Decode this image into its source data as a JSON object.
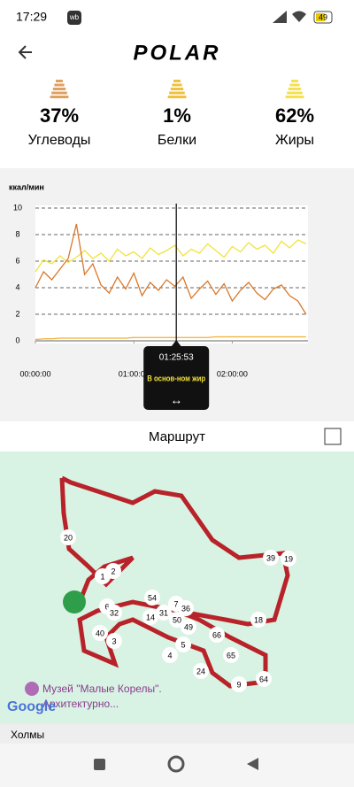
{
  "status_bar": {
    "time": "17:29",
    "badge": "wb",
    "battery": "49"
  },
  "header": {
    "logo": "POLAR"
  },
  "macros": [
    {
      "value": "37%",
      "label": "Углеводы",
      "color": "#e0a060"
    },
    {
      "value": "1%",
      "label": "Белки",
      "color": "#f0c040"
    },
    {
      "value": "62%",
      "label": "Жиры",
      "color": "#f5e050"
    }
  ],
  "chart_data": {
    "type": "line",
    "y_label": "ккал/мин",
    "x": [
      0,
      300,
      600,
      900,
      1200,
      1500,
      1800,
      2100,
      2400,
      2700,
      3000,
      3300,
      3600,
      3900,
      4200,
      4500,
      4800,
      5100,
      5400,
      5700,
      6000,
      6300,
      6600,
      6900,
      7200,
      7500,
      7800,
      8100,
      8400,
      8700,
      9000,
      9300,
      9600,
      9900
    ],
    "xlim": [
      0,
      9970
    ],
    "xticks": [
      {
        "value": 0,
        "label": "00:00:00"
      },
      {
        "value": 3600,
        "label": "01:00:00"
      },
      {
        "value": 7200,
        "label": "02:00:00"
      }
    ],
    "ylim": [
      0,
      10
    ],
    "yticks": [
      0,
      2,
      4,
      6,
      8,
      10
    ],
    "grid": true,
    "series": [
      {
        "color": "#f2e23a",
        "values": [
          5.2,
          6.1,
          5.8,
          6.4,
          5.9,
          6.3,
          6.8,
          6.2,
          6.6,
          6.0,
          6.9,
          6.4,
          6.7,
          6.2,
          7.0,
          6.5,
          6.8,
          7.2,
          6.4,
          6.9,
          6.6,
          7.3,
          6.8,
          6.3,
          7.1,
          6.7,
          7.4,
          6.9,
          7.2,
          6.6,
          7.5,
          7.0,
          7.6,
          7.3
        ]
      },
      {
        "color": "#d9782a",
        "values": [
          4.0,
          5.2,
          4.6,
          5.4,
          6.2,
          8.8,
          5.0,
          5.8,
          4.2,
          3.6,
          4.8,
          3.9,
          5.1,
          3.4,
          4.4,
          3.8,
          4.6,
          4.1,
          4.8,
          3.2,
          3.9,
          4.5,
          3.5,
          4.3,
          3.0,
          3.8,
          4.4,
          3.6,
          3.1,
          3.9,
          4.2,
          3.4,
          3.0,
          2.0
        ]
      },
      {
        "color": "#f0b030",
        "values": [
          0.1,
          0.15,
          0.15,
          0.2,
          0.2,
          0.2,
          0.2,
          0.2,
          0.2,
          0.2,
          0.2,
          0.2,
          0.25,
          0.25,
          0.25,
          0.25,
          0.25,
          0.25,
          0.25,
          0.25,
          0.25,
          0.25,
          0.3,
          0.3,
          0.3,
          0.3,
          0.3,
          0.3,
          0.3,
          0.3,
          0.3,
          0.3,
          0.3,
          0.3
        ]
      }
    ],
    "cursor": {
      "x": 5153,
      "time": "01:25:53",
      "text": "В основ-ном жир",
      "arrow": "↔"
    }
  },
  "route": {
    "title": "Маршрут",
    "markers": [
      "20",
      "1",
      "2",
      "39",
      "19",
      "54",
      "7",
      "36",
      "6",
      "32",
      "31",
      "14",
      "50",
      "49",
      "18",
      "40",
      "3",
      "4",
      "5",
      "66",
      "65",
      "24",
      "9",
      "64"
    ],
    "poi": "Музей \"Малые Корелы\".",
    "poi_sub": "Архитектурно...",
    "attribution": "Google",
    "place": "Холмы"
  }
}
